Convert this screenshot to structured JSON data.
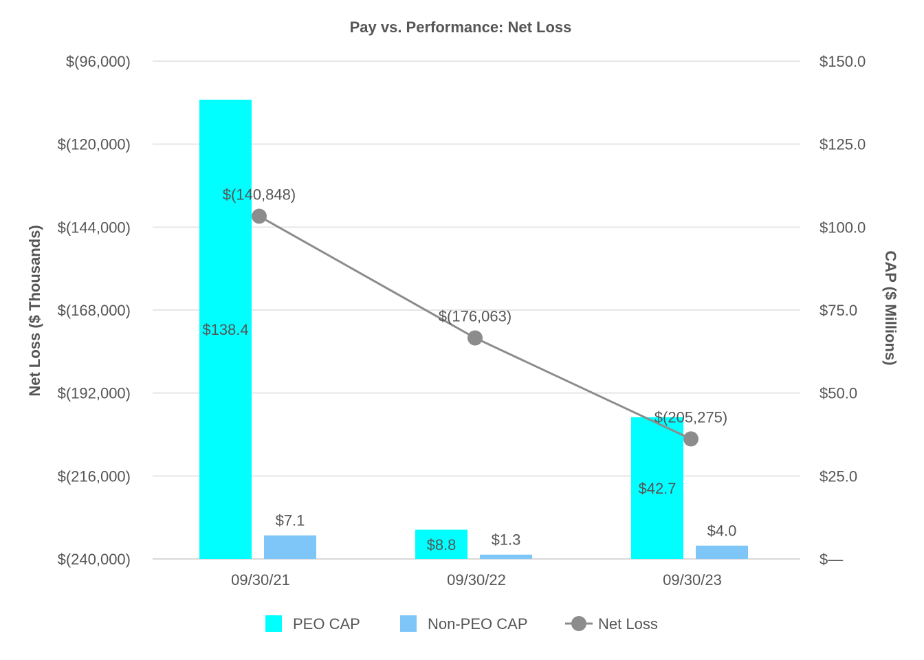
{
  "chart_data": {
    "type": "bar",
    "title": "Pay vs. Performance: Net Loss",
    "categories": [
      "09/30/21",
      "09/30/22",
      "09/30/23"
    ],
    "y_left": {
      "label": "Net Loss ($ Thousands)",
      "range": [
        -240000,
        -96000
      ],
      "ticks": [
        -96000,
        -120000,
        -144000,
        -168000,
        -192000,
        -216000,
        -240000
      ],
      "tick_labels": [
        "$(96,000)",
        "$(120,000)",
        "$(144,000)",
        "$(168,000)",
        "$(192,000)",
        "$(216,000)",
        "$(240,000)"
      ]
    },
    "y_right": {
      "label": "CAP ($ Millions)",
      "range": [
        0,
        150
      ],
      "ticks": [
        150,
        125,
        100,
        75,
        50,
        25,
        0
      ],
      "tick_labels": [
        "$150.0",
        "$125.0",
        "$100.0",
        "$75.0",
        "$50.0",
        "$25.0",
        "$—"
      ]
    },
    "series": [
      {
        "name": "PEO CAP",
        "type": "bar",
        "axis": "right",
        "color": "#00FFFF",
        "values": [
          138.4,
          8.8,
          42.7
        ],
        "labels": [
          "$138.4",
          "$8.8",
          "$42.7"
        ]
      },
      {
        "name": "Non-PEO CAP",
        "type": "bar",
        "axis": "right",
        "color": "#7FC6F8",
        "values": [
          7.1,
          1.3,
          4.0
        ],
        "labels": [
          "$7.1",
          "$1.3",
          "$4.0"
        ]
      },
      {
        "name": "Net Loss",
        "type": "line",
        "axis": "left",
        "color": "#8C8C8C",
        "values": [
          -140848,
          -176063,
          -205275
        ],
        "labels": [
          "$(140,848)",
          "$(176,063)",
          "$(205,275)"
        ]
      }
    ],
    "grid": true,
    "legend": "bottom"
  }
}
